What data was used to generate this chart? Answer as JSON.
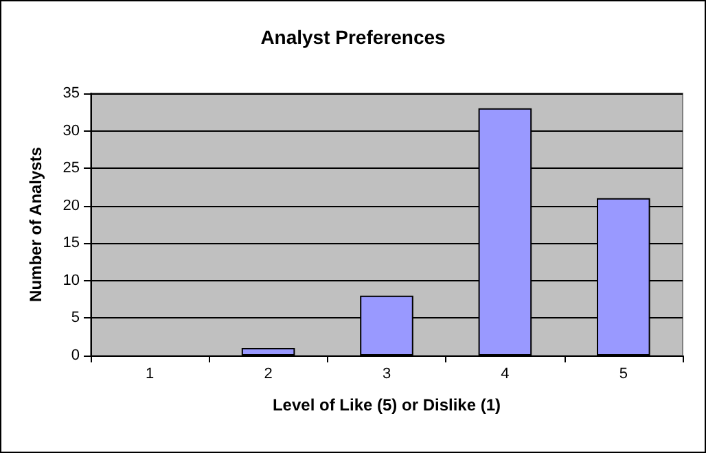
{
  "chart_data": {
    "type": "bar",
    "title": "Analyst Preferences",
    "xlabel": "Level of Like (5) or Dislike (1)",
    "ylabel": "Number of Analysts",
    "categories": [
      "1",
      "2",
      "3",
      "4",
      "5"
    ],
    "values": [
      0,
      1,
      8,
      33,
      21
    ],
    "color": "#9999ff",
    "ylim": [
      0,
      35
    ],
    "yticks": [
      0,
      5,
      10,
      15,
      20,
      25,
      30,
      35
    ],
    "grid": "y"
  }
}
